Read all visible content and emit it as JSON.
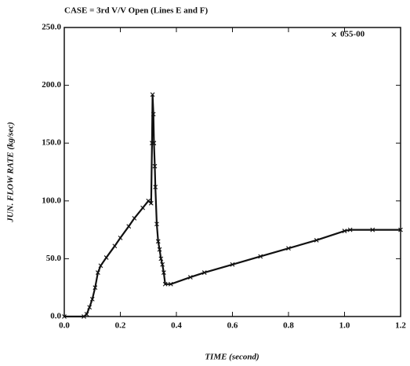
{
  "chart_data": {
    "type": "line",
    "title": "CASE = 3rd V/V Open (Lines E and F)",
    "x_label": "TIME (second)",
    "y_label": "JUN. FLOW RATE (kg/sec)",
    "series": [
      {
        "name": "055-00",
        "color": "#111111",
        "x": [
          0,
          0.07,
          0.08,
          0.09,
          0.1,
          0.11,
          0.12,
          0.13,
          0.15,
          0.18,
          0.2,
          0.23,
          0.25,
          0.28,
          0.3,
          0.31,
          0.313,
          0.315,
          0.318,
          0.32,
          0.323,
          0.325,
          0.33,
          0.335,
          0.34,
          0.345,
          0.35,
          0.355,
          0.36,
          0.38,
          0.45,
          0.5,
          0.6,
          0.7,
          0.8,
          0.9,
          1.0,
          1.02,
          1.1,
          1.2
        ],
        "values": [
          0,
          0,
          2,
          8,
          15,
          25,
          38,
          44,
          51,
          61,
          68,
          78,
          85,
          94,
          100,
          98,
          150,
          192,
          175,
          150,
          130,
          112,
          80,
          65,
          58,
          50,
          45,
          38,
          28,
          28,
          34,
          38,
          45,
          52,
          59,
          66,
          74,
          75,
          75,
          75
        ]
      }
    ],
    "xlim": [
      0,
      1.2
    ],
    "xticks": [
      {
        "value": 0,
        "label": "0.0"
      },
      0.2,
      0.4,
      0.6,
      0.8,
      {
        "value": 1,
        "label": "1.0"
      },
      1.2
    ],
    "ylim": [
      0,
      250
    ],
    "yticks": [
      {
        "value": 0,
        "label": "0.0"
      },
      {
        "value": 50,
        "label": "50.0"
      },
      {
        "value": 100,
        "label": "100.0"
      },
      {
        "value": 150,
        "label": "150.0"
      },
      {
        "value": 200,
        "label": "200.0"
      },
      {
        "value": 250,
        "label": "250.0"
      }
    ],
    "grid": false,
    "legend": "top-right"
  }
}
